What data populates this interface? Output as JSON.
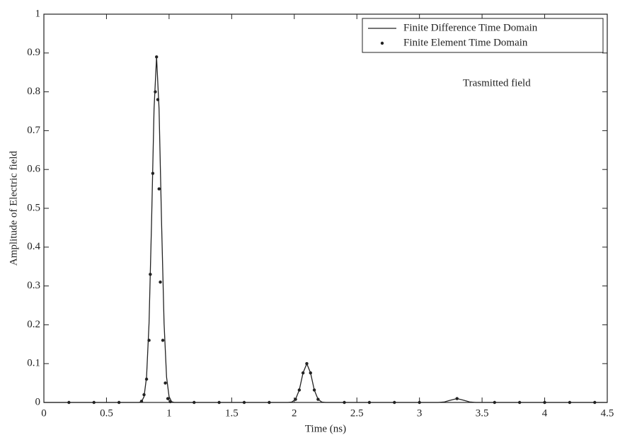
{
  "chart_data": {
    "type": "line",
    "x_label": "Time (ns)",
    "y_label": "Amplitude of Electric field",
    "annotation": "Trasmitted field",
    "xlim": [
      0,
      4.5
    ],
    "ylim": [
      0,
      1
    ],
    "xticks": [
      0,
      0.5,
      1,
      1.5,
      2,
      2.5,
      3,
      3.5,
      4,
      4.5
    ],
    "yticks": [
      0,
      0.1,
      0.2,
      0.3,
      0.4,
      0.5,
      0.6,
      0.7,
      0.8,
      0.9,
      1
    ],
    "legend": "upper right",
    "series": [
      {
        "name": "Finite Difference Time Domain",
        "type": "line",
        "color": "#222222",
        "x": [
          0,
          0.5,
          0.7,
          0.76,
          0.78,
          0.8,
          0.82,
          0.84,
          0.86,
          0.88,
          0.9,
          0.92,
          0.94,
          0.96,
          0.98,
          1.0,
          1.02,
          1.04,
          1.1,
          1.5,
          1.95,
          1.98,
          2.01,
          2.04,
          2.07,
          2.1,
          2.13,
          2.16,
          2.19,
          2.22,
          2.25,
          2.5,
          3.15,
          3.2,
          3.25,
          3.3,
          3.35,
          3.4,
          3.45,
          4.5
        ],
        "values": [
          0,
          0,
          0,
          0,
          0.002,
          0.015,
          0.065,
          0.204,
          0.463,
          0.756,
          0.89,
          0.756,
          0.463,
          0.204,
          0.065,
          0.015,
          0.002,
          0,
          0,
          0,
          0,
          0.001,
          0.008,
          0.032,
          0.076,
          0.1,
          0.076,
          0.032,
          0.008,
          0.001,
          0,
          0,
          0,
          0.0014,
          0.006,
          0.01,
          0.006,
          0.0014,
          0,
          0
        ]
      },
      {
        "name": "Finite Element Time Domain",
        "type": "scatter",
        "color": "#222222",
        "x": [
          0.2,
          0.4,
          0.6,
          0.78,
          0.8,
          0.82,
          0.84,
          0.85,
          0.87,
          0.89,
          0.9,
          0.91,
          0.92,
          0.93,
          0.95,
          0.97,
          0.99,
          1.01,
          1.2,
          1.4,
          1.6,
          1.8,
          2.01,
          2.04,
          2.07,
          2.1,
          2.13,
          2.16,
          2.19,
          2.4,
          2.6,
          2.8,
          3.0,
          3.3,
          3.6,
          3.8,
          4.0,
          4.2,
          4.4
        ],
        "values": [
          0,
          0,
          0,
          0.003,
          0.02,
          0.06,
          0.16,
          0.33,
          0.59,
          0.8,
          0.89,
          0.78,
          0.55,
          0.31,
          0.16,
          0.05,
          0.01,
          0.002,
          0,
          0,
          0,
          0,
          0.008,
          0.032,
          0.076,
          0.1,
          0.076,
          0.032,
          0.008,
          0,
          0,
          0,
          0,
          0.01,
          0,
          0,
          0,
          0,
          0
        ]
      }
    ]
  }
}
